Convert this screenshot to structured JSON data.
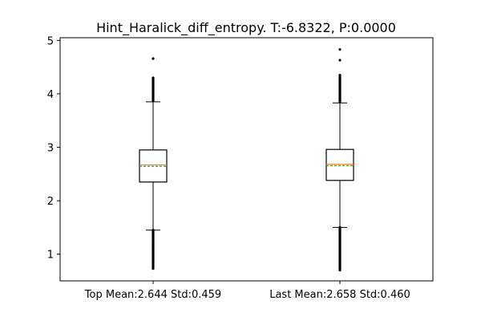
{
  "chart_data": {
    "type": "boxplot",
    "title": "Hint_Haralick_diff_entropy. T:-6.8322, P:0.0000",
    "categories": [
      "Top Mean:2.644 Std:0.459",
      "Last Mean:2.658 Std:0.460"
    ],
    "ylim": [
      0.5,
      5.05
    ],
    "yticks": [
      1,
      2,
      3,
      4,
      5
    ],
    "grid": false,
    "boxes": [
      {
        "q1": 2.35,
        "median": 2.67,
        "mean": 2.644,
        "q3": 2.95,
        "whisker_low": 1.45,
        "whisker_high": 3.85,
        "outliers_low_range": [
          0.73,
          1.45
        ],
        "outliers_high_range": [
          3.87,
          4.3
        ],
        "outliers_extra": [
          4.66
        ]
      },
      {
        "q1": 2.38,
        "median": 2.68,
        "mean": 2.658,
        "q3": 2.96,
        "whisker_low": 1.5,
        "whisker_high": 3.83,
        "outliers_low_range": [
          0.7,
          1.5
        ],
        "outliers_high_range": [
          3.85,
          4.35
        ],
        "outliers_extra": [
          4.63,
          4.83
        ]
      }
    ],
    "colors": {
      "median": "#ff7f0e",
      "mean": "#2ca02c",
      "box": "#000000"
    }
  }
}
